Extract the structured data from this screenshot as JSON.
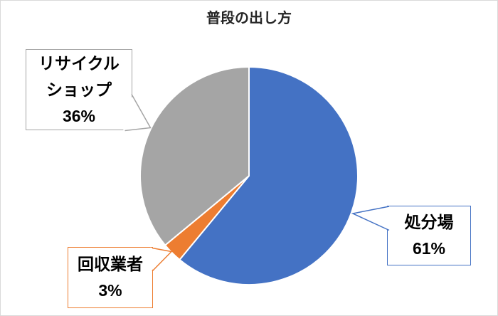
{
  "chart_data": {
    "type": "pie",
    "title": "普段の出し方",
    "categories": [
      "処分場",
      "回収業者",
      "リサイクルショップ"
    ],
    "values": [
      61,
      3,
      36
    ],
    "unit": "%",
    "colors": [
      "#4472C4",
      "#ED7D31",
      "#A5A5A5"
    ],
    "slice_keys": [
      "disposal-site",
      "collection-agent",
      "recycle-shop"
    ],
    "start_angle_deg": 0,
    "direction": "clockwise",
    "legend_position": "none",
    "label_style": "callout-boxes",
    "background": "#FFFFFF"
  },
  "callouts": {
    "disposal_site": {
      "lines": [
        "処分場",
        "61%"
      ],
      "border_color": "#4472C4"
    },
    "collection_agent": {
      "lines": [
        "回収業者",
        "3%"
      ],
      "border_color": "#ED7D31"
    },
    "recycle_shop": {
      "lines": [
        "リサイクル",
        "ショップ",
        "36%"
      ],
      "border_color": "#A5A5A5"
    }
  }
}
